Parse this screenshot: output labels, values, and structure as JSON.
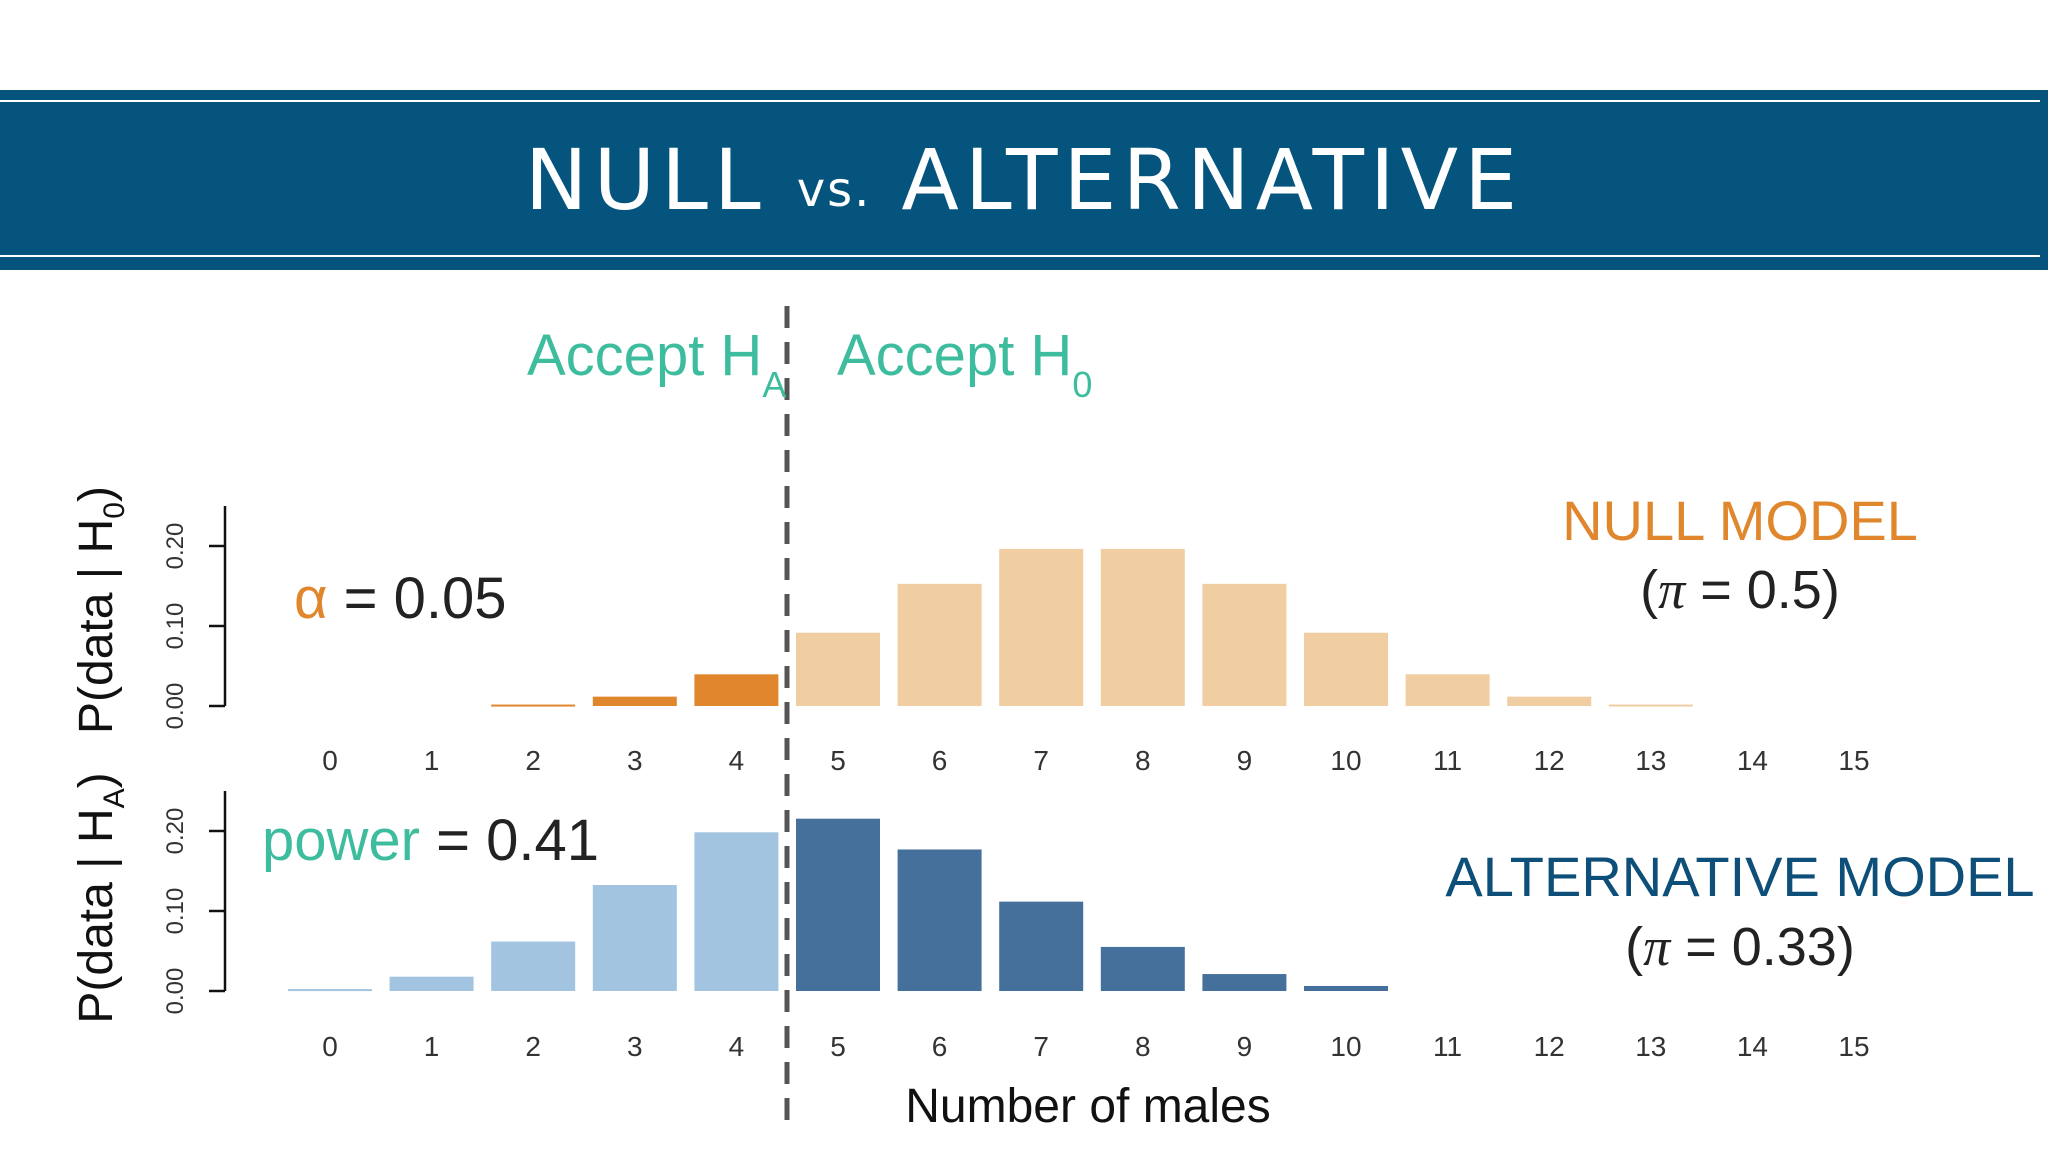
{
  "header": {
    "title_left": "NULL",
    "title_mid": "vs.",
    "title_right": "ALTERNATIVE",
    "bg_color": "#04547e",
    "text_color": "#ffffff"
  },
  "colors": {
    "teal": "#3dbd9d",
    "orange": "#e0872e",
    "orange_light": "#f1cda2",
    "blue_light": "#a3c4e0",
    "blue_dark": "#46709c",
    "navy": "#0d4f78"
  },
  "labels": {
    "accept_ha": "Accept H",
    "accept_ha_sub": "A",
    "accept_h0": "Accept H",
    "accept_h0_sub": "0",
    "alpha_sym": "α",
    "alpha_rest": " = 0.05",
    "power_word": "power",
    "power_rest": " = 0.41",
    "null_model": "NULL MODEL",
    "null_param_pi": "π",
    "null_param_rest": " = 0.5)",
    "alt_model": "ALTERNATIVE MODEL",
    "alt_param_pi": "π",
    "alt_param_rest": " = 0.33)",
    "param_open": "(",
    "ylabel_top": "P(data | H",
    "ylabel_top_sub": "0",
    "ylabel_bottom": "P(data | H",
    "ylabel_bottom_sub": "A",
    "ylabel_close": ")"
  },
  "chart_data": [
    {
      "type": "bar",
      "name": "null",
      "xlabel": "",
      "categories": [
        "0",
        "1",
        "2",
        "3",
        "4",
        "5",
        "6",
        "7",
        "8",
        "9",
        "10",
        "11",
        "12",
        "13",
        "14",
        "15"
      ],
      "values": [
        0.0,
        0.0,
        0.0018,
        0.0117,
        0.0396,
        0.0916,
        0.1527,
        0.1964,
        0.1964,
        0.1527,
        0.0916,
        0.0396,
        0.0117,
        0.0018,
        0.0,
        0.0
      ],
      "ylim": [
        0,
        0.25
      ],
      "yticks": [
        "0.00",
        "0.10",
        "0.20"
      ],
      "rejection_region": [
        0,
        4
      ]
    },
    {
      "type": "bar",
      "name": "alternative",
      "xlabel": "Number of males",
      "categories": [
        "0",
        "1",
        "2",
        "3",
        "4",
        "5",
        "6",
        "7",
        "8",
        "9",
        "10",
        "11",
        "12",
        "13",
        "14",
        "15"
      ],
      "values": [
        0.0024,
        0.0179,
        0.0618,
        0.1325,
        0.1984,
        0.2154,
        0.1769,
        0.1117,
        0.0551,
        0.0212,
        0.0063,
        0.0,
        0.0,
        0.0,
        0.0,
        0.0
      ],
      "ylim": [
        0,
        0.25
      ],
      "yticks": [
        "0.00",
        "0.10",
        "0.20"
      ],
      "rejection_region": [
        0,
        4
      ]
    }
  ]
}
